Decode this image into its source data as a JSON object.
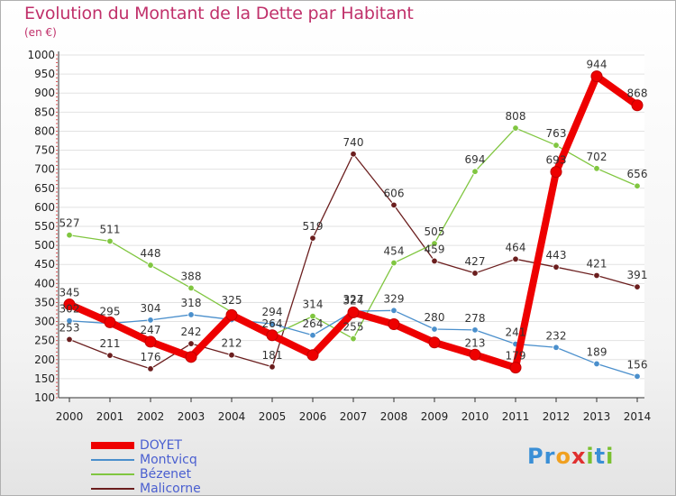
{
  "title": "Evolution du Montant de la Dette par Habitant",
  "unit_label": "(en €)",
  "logo": {
    "text": "Proxiti",
    "colors": [
      "#3a8fd6",
      "#f0a020",
      "#e03030",
      "#7ac030"
    ]
  },
  "chart_data": {
    "type": "line",
    "x": [
      "2000",
      "2001",
      "2002",
      "2003",
      "2004",
      "2005",
      "2006",
      "2007",
      "2008",
      "2009",
      "2010",
      "2011",
      "2012",
      "2013",
      "2014"
    ],
    "ylim": [
      100,
      1000
    ],
    "yticks": [
      100,
      150,
      200,
      250,
      300,
      350,
      400,
      450,
      500,
      550,
      600,
      650,
      700,
      750,
      800,
      850,
      900,
      950,
      1000
    ],
    "grid": true,
    "legend_position": "bottom-left",
    "series": [
      {
        "name": "DOYET",
        "color": "#ee0000",
        "values": [
          345,
          298,
          247,
          207,
          317,
          264,
          212,
          324,
          293,
          245,
          213,
          179,
          693,
          944,
          868
        ],
        "labels": [
          "345",
          "",
          "247",
          "",
          "",
          "",
          "",
          "324",
          "",
          "",
          "213",
          "179",
          "693",
          "944",
          "868"
        ]
      },
      {
        "name": "Montvicq",
        "color": "#4a8fcc",
        "values": [
          302,
          295,
          304,
          318,
          305,
          294,
          264,
          327,
          329,
          280,
          278,
          241,
          232,
          189,
          156
        ],
        "labels": [
          "302",
          "295",
          "304",
          "318",
          "",
          "294",
          "264",
          "327",
          "329",
          "280",
          "278",
          "241",
          "232",
          "189",
          "156"
        ]
      },
      {
        "name": "Bézenet",
        "color": "#80c640",
        "values": [
          527,
          511,
          448,
          388,
          325,
          264,
          314,
          255,
          454,
          505,
          694,
          808,
          763,
          702,
          656
        ],
        "labels": [
          "527",
          "511",
          "448",
          "388",
          "325",
          "264",
          "314",
          "255",
          "454",
          "505",
          "694",
          "808",
          "763",
          "702",
          "656"
        ]
      },
      {
        "name": "Malicorne",
        "color": "#6b1e1e",
        "values": [
          253,
          211,
          176,
          242,
          212,
          181,
          519,
          740,
          606,
          459,
          427,
          464,
          443,
          421,
          391
        ],
        "labels": [
          "253",
          "211",
          "176",
          "242",
          "212",
          "181",
          "519",
          "740",
          "606",
          "459",
          "427",
          "464",
          "443",
          "421",
          "391"
        ]
      }
    ]
  }
}
